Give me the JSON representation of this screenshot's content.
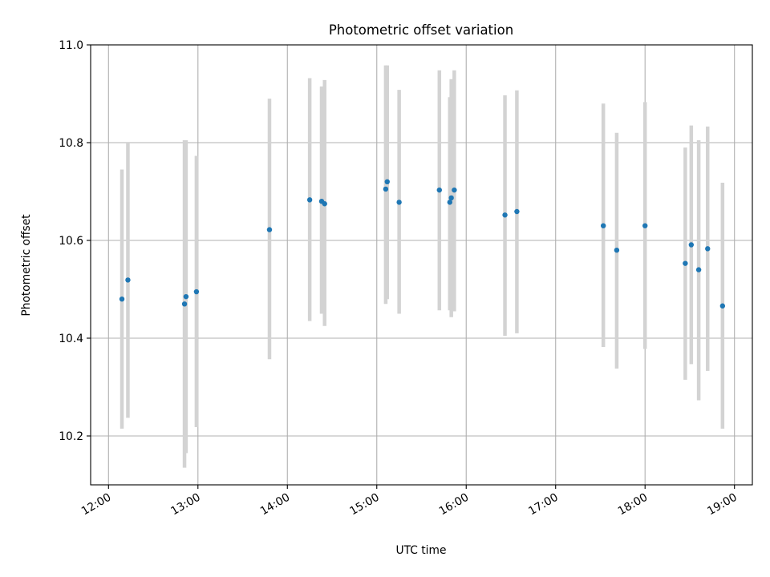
{
  "chart_data": {
    "type": "scatter",
    "title": "Photometric offset variation",
    "xlabel": "UTC time",
    "ylabel": "Photometric offset",
    "x_axis_kind": "time",
    "xlim": [
      "11:48",
      "19:12"
    ],
    "ylim": [
      10.1,
      11.0
    ],
    "x_ticks": [
      "12:00",
      "13:00",
      "14:00",
      "15:00",
      "16:00",
      "17:00",
      "18:00",
      "19:00"
    ],
    "y_ticks": [
      "10.2",
      "10.4",
      "10.6",
      "10.8",
      "11.0"
    ],
    "grid": true,
    "legend": null,
    "colors": {
      "points": "#1f77b4",
      "error_bars": "#d3d3d3",
      "grid": "#b0b0b0"
    },
    "points": [
      {
        "x": "12:09",
        "y": 10.48,
        "ylow": 10.215,
        "yhigh": 10.745
      },
      {
        "x": "12:13",
        "y": 10.519,
        "ylow": 10.237,
        "yhigh": 10.8
      },
      {
        "x": "12:51",
        "y": 10.47,
        "ylow": 10.135,
        "yhigh": 10.805
      },
      {
        "x": "12:52",
        "y": 10.485,
        "ylow": 10.165,
        "yhigh": 10.805
      },
      {
        "x": "12:59",
        "y": 10.495,
        "ylow": 10.218,
        "yhigh": 10.773
      },
      {
        "x": "13:48",
        "y": 10.622,
        "ylow": 10.357,
        "yhigh": 10.89
      },
      {
        "x": "14:15",
        "y": 10.683,
        "ylow": 10.435,
        "yhigh": 10.932
      },
      {
        "x": "14:23",
        "y": 10.68,
        "ylow": 10.45,
        "yhigh": 10.915
      },
      {
        "x": "14:25",
        "y": 10.675,
        "ylow": 10.425,
        "yhigh": 10.928
      },
      {
        "x": "15:06",
        "y": 10.705,
        "ylow": 10.47,
        "yhigh": 10.958
      },
      {
        "x": "15:07",
        "y": 10.72,
        "ylow": 10.48,
        "yhigh": 10.958
      },
      {
        "x": "15:15",
        "y": 10.678,
        "ylow": 10.45,
        "yhigh": 10.908
      },
      {
        "x": "15:42",
        "y": 10.703,
        "ylow": 10.457,
        "yhigh": 10.948
      },
      {
        "x": "15:49",
        "y": 10.678,
        "ylow": 10.457,
        "yhigh": 10.893
      },
      {
        "x": "15:50",
        "y": 10.687,
        "ylow": 10.443,
        "yhigh": 10.93
      },
      {
        "x": "15:52",
        "y": 10.703,
        "ylow": 10.455,
        "yhigh": 10.948
      },
      {
        "x": "16:26",
        "y": 10.652,
        "ylow": 10.405,
        "yhigh": 10.897
      },
      {
        "x": "16:34",
        "y": 10.659,
        "ylow": 10.41,
        "yhigh": 10.907
      },
      {
        "x": "17:32",
        "y": 10.63,
        "ylow": 10.382,
        "yhigh": 10.88
      },
      {
        "x": "17:41",
        "y": 10.58,
        "ylow": 10.338,
        "yhigh": 10.82
      },
      {
        "x": "18:00",
        "y": 10.63,
        "ylow": 10.378,
        "yhigh": 10.883
      },
      {
        "x": "18:27",
        "y": 10.553,
        "ylow": 10.315,
        "yhigh": 10.79
      },
      {
        "x": "18:31",
        "y": 10.591,
        "ylow": 10.347,
        "yhigh": 10.835
      },
      {
        "x": "18:36",
        "y": 10.54,
        "ylow": 10.273,
        "yhigh": 10.805
      },
      {
        "x": "18:42",
        "y": 10.583,
        "ylow": 10.333,
        "yhigh": 10.833
      },
      {
        "x": "18:52",
        "y": 10.466,
        "ylow": 10.215,
        "yhigh": 10.718
      }
    ]
  }
}
